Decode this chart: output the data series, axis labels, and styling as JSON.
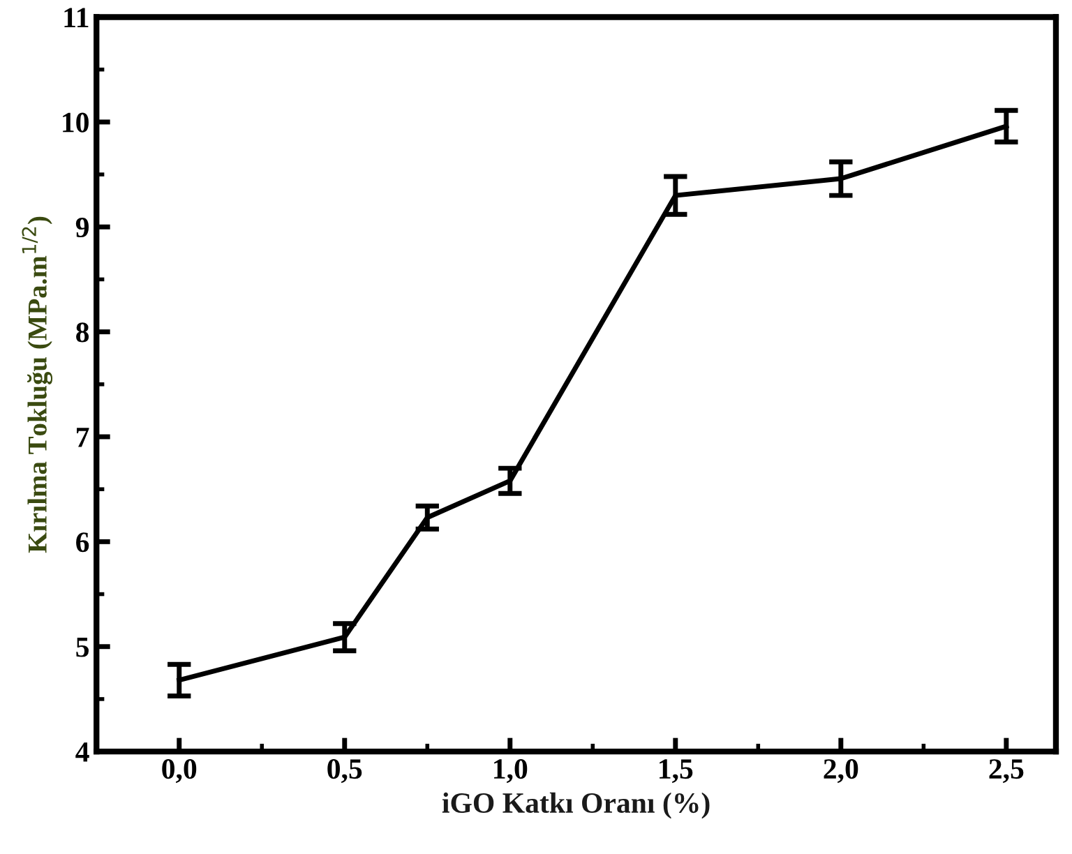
{
  "chart_data": {
    "type": "line",
    "xlabel": "iGO Katkı Oranı (%)",
    "ylabel": "Kırılma Tokluğu (MPa.m$^{1/2}$)",
    "x": [
      0.0,
      0.5,
      0.75,
      1.0,
      1.5,
      2.0,
      2.5
    ],
    "series": [
      {
        "color": "#000000",
        "values": [
          4.68,
          5.09,
          6.23,
          6.58,
          9.3,
          9.46,
          9.96
        ],
        "errors": [
          0.15,
          0.13,
          0.11,
          0.12,
          0.18,
          0.16,
          0.15
        ]
      }
    ],
    "xlim": [
      -0.25,
      2.65
    ],
    "ylim": [
      4,
      11
    ],
    "xticks": [
      {
        "value": 0.0,
        "label": "0,0"
      },
      {
        "value": 0.5,
        "label": "0,5"
      },
      {
        "value": 1.0,
        "label": "1,0"
      },
      {
        "value": 1.5,
        "label": "1,5"
      },
      {
        "value": 2.0,
        "label": "2,0"
      },
      {
        "value": 2.5,
        "label": "2,5"
      }
    ],
    "yticks": [
      4,
      5,
      6,
      7,
      8,
      9,
      10,
      11
    ],
    "grid": false,
    "legend": false,
    "marker": "none",
    "line_style": "solid"
  }
}
